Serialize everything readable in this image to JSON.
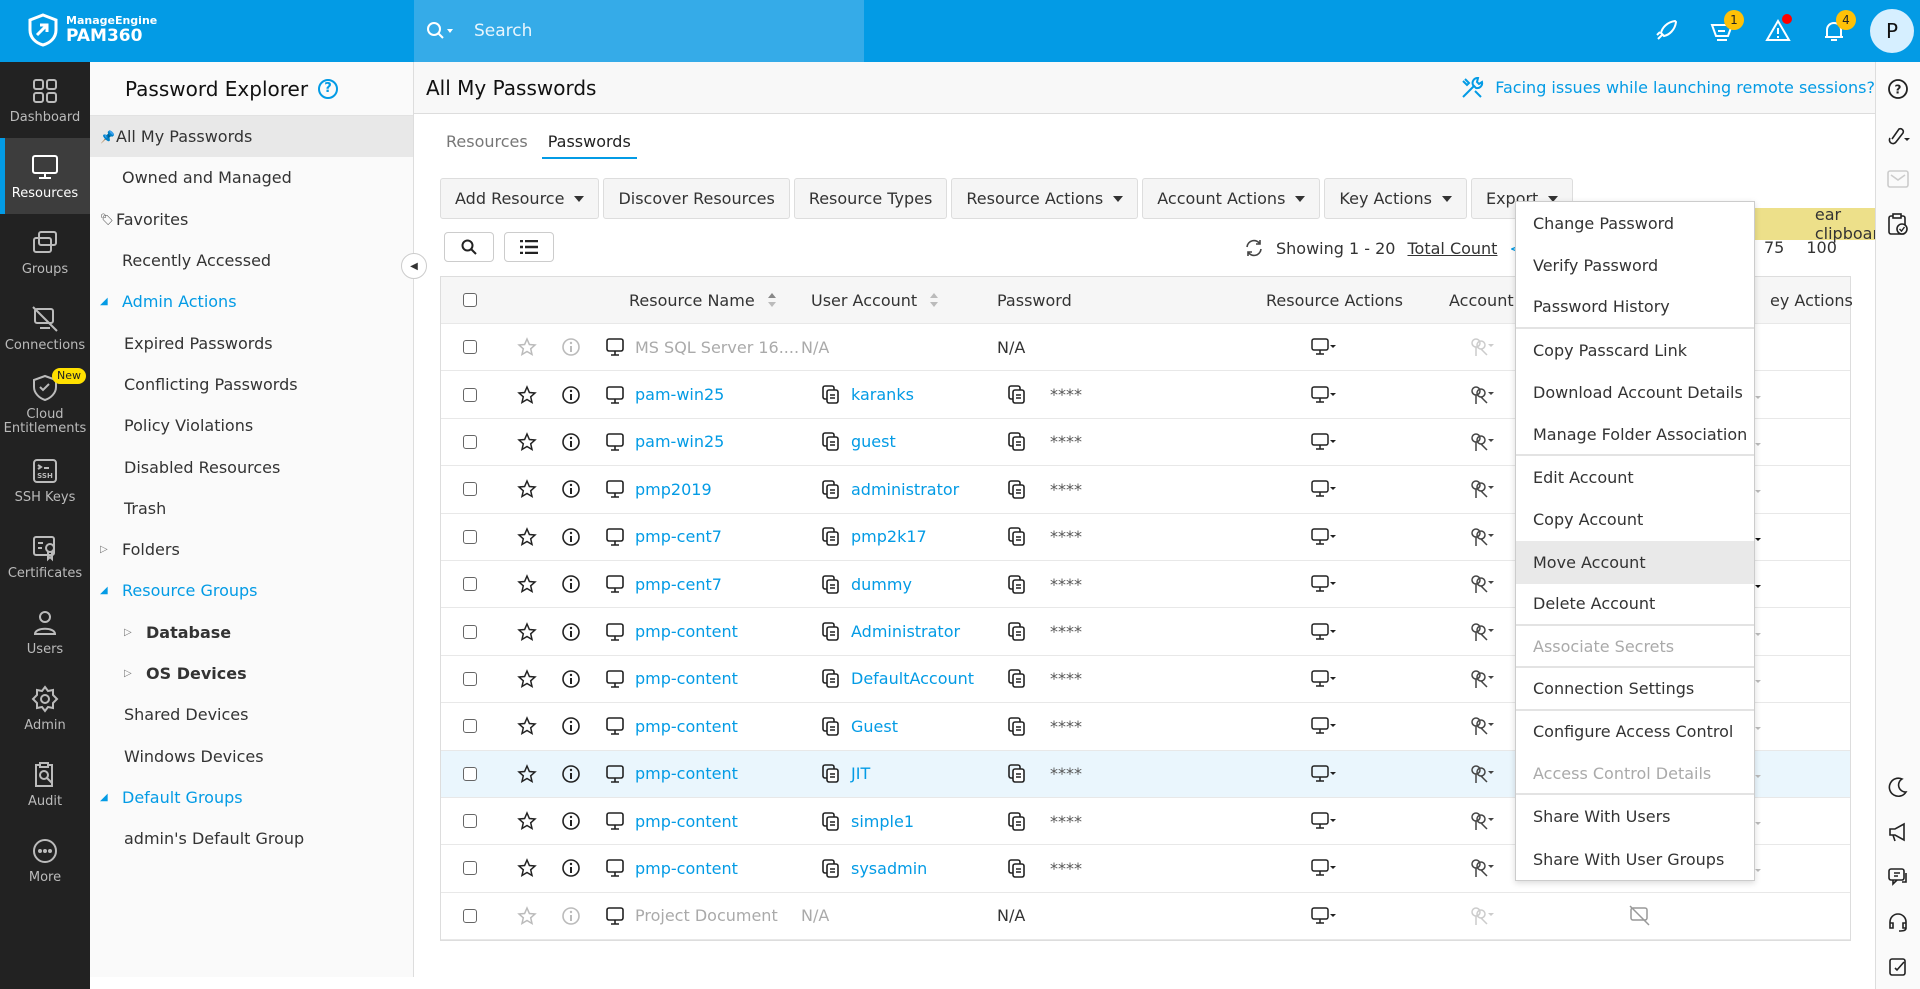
{
  "brand": {
    "company": "ManageEngine",
    "product": "PAM360"
  },
  "search": {
    "placeholder": "Search"
  },
  "topbar": {
    "cart_badge": "1",
    "notif_badge": "4",
    "avatar": "P"
  },
  "nav": [
    {
      "label": "Dashboard",
      "icon": "dashboard-icon"
    },
    {
      "label": "Resources",
      "icon": "monitor-icon",
      "active": true
    },
    {
      "label": "Groups",
      "icon": "groups-icon"
    },
    {
      "label": "Connections",
      "icon": "connections-icon"
    },
    {
      "label": "Cloud Entitlements",
      "icon": "cloud-shield-icon",
      "badge": "New"
    },
    {
      "label": "SSH Keys",
      "icon": "ssh-icon"
    },
    {
      "label": "Certificates",
      "icon": "certificate-icon"
    },
    {
      "label": "Users",
      "icon": "user-icon"
    },
    {
      "label": "Admin",
      "icon": "gear-icon"
    },
    {
      "label": "Audit",
      "icon": "audit-icon"
    },
    {
      "label": "More",
      "icon": "more-icon"
    }
  ],
  "explorer": {
    "title": "Password Explorer",
    "items": [
      {
        "label": "All My Passwords",
        "level": 0,
        "selected": true,
        "icon": "pin"
      },
      {
        "label": "Owned and Managed",
        "level": 0
      },
      {
        "label": "Favorites",
        "level": 0,
        "icon": "tag"
      },
      {
        "label": "Recently Accessed",
        "level": 0
      },
      {
        "label": "Admin Actions",
        "level": 0,
        "header": true,
        "expanded": true
      },
      {
        "label": "Expired Passwords",
        "level": 1
      },
      {
        "label": "Conflicting Passwords",
        "level": 1
      },
      {
        "label": "Policy Violations",
        "level": 1
      },
      {
        "label": "Disabled Resources",
        "level": 1
      },
      {
        "label": "Trash",
        "level": 1
      },
      {
        "label": "Folders",
        "level": 0,
        "collapsed": true
      },
      {
        "label": "Resource Groups",
        "level": 0,
        "header": true,
        "expanded": true
      },
      {
        "label": "Database",
        "level": 1,
        "collapsed": true,
        "bold": true
      },
      {
        "label": "OS Devices",
        "level": 1,
        "collapsed": true,
        "bold": true
      },
      {
        "label": "Shared Devices",
        "level": 1
      },
      {
        "label": "Windows Devices",
        "level": 1
      },
      {
        "label": "Default Groups",
        "level": 0,
        "header": true,
        "expanded": true
      },
      {
        "label": "admin's Default Group",
        "level": 1
      }
    ]
  },
  "main": {
    "title": "All My Passwords",
    "issue_link": "Facing issues while launching remote sessions?",
    "tabs": [
      {
        "label": "Resources"
      },
      {
        "label": "Passwords",
        "active": true
      }
    ],
    "toolbar": [
      {
        "label": "Add Resource",
        "caret": true
      },
      {
        "label": "Discover Resources"
      },
      {
        "label": "Resource Types"
      },
      {
        "label": "Resource Actions",
        "caret": true
      },
      {
        "label": "Account Actions",
        "caret": true
      },
      {
        "label": "Key Actions",
        "caret": true
      },
      {
        "label": "Export",
        "caret": true
      }
    ],
    "pager": {
      "showing": "Showing 1 - 20",
      "total": "Total Count",
      "prev": "p",
      "sizes": [
        "75",
        "100"
      ]
    },
    "tooltip": "ear clipboard.",
    "columns": {
      "resource": "Resource Name",
      "account": "User Account",
      "password": "Password",
      "resource_actions": "Resource Actions",
      "account_actions": "Account Act",
      "key_actions": "ey Actions"
    },
    "rows": [
      {
        "resource": "MS SQL Server 16....",
        "account": "N/A",
        "password": "N/A",
        "disabled": true,
        "key": "none"
      },
      {
        "resource": "pam-win25",
        "account": "karanks",
        "password": "****",
        "key": "light"
      },
      {
        "resource": "pam-win25",
        "account": "guest",
        "password": "****",
        "key": "light"
      },
      {
        "resource": "pmp2019",
        "account": "administrator",
        "password": "****",
        "key": "light"
      },
      {
        "resource": "pmp-cent7",
        "account": "pmp2k17",
        "password": "****",
        "key": "dark"
      },
      {
        "resource": "pmp-cent7",
        "account": "dummy",
        "password": "****",
        "key": "dark"
      },
      {
        "resource": "pmp-content",
        "account": "Administrator",
        "password": "****",
        "key": "light"
      },
      {
        "resource": "pmp-content",
        "account": "DefaultAccount",
        "password": "****",
        "key": "light"
      },
      {
        "resource": "pmp-content",
        "account": "Guest",
        "password": "****",
        "key": "light"
      },
      {
        "resource": "pmp-content",
        "account": "JIT",
        "password": "****",
        "key": "light",
        "highlighted": true
      },
      {
        "resource": "pmp-content",
        "account": "simple1",
        "password": "****",
        "key": "light"
      },
      {
        "resource": "pmp-content",
        "account": "sysadmin",
        "password": "****",
        "key": "light"
      },
      {
        "resource": "Project Document",
        "account": "N/A",
        "password": "N/A",
        "disabled": true,
        "key": "connection-off"
      }
    ]
  },
  "menu": [
    {
      "label": "Change Password"
    },
    {
      "label": "Verify Password"
    },
    {
      "label": "Password History",
      "sep": true
    },
    {
      "label": "Copy Passcard Link"
    },
    {
      "label": "Download Account Details"
    },
    {
      "label": "Manage Folder Association",
      "sep": true
    },
    {
      "label": "Edit Account"
    },
    {
      "label": "Copy Account"
    },
    {
      "label": "Move Account",
      "hover": true
    },
    {
      "label": "Delete Account",
      "sep": true
    },
    {
      "label": "Associate Secrets",
      "disabled": true,
      "sep": true
    },
    {
      "label": "Connection Settings",
      "sep": true
    },
    {
      "label": "Configure Access Control"
    },
    {
      "label": "Access Control Details",
      "disabled": true,
      "sep": true
    },
    {
      "label": "Share With Users"
    },
    {
      "label": "Share With User Groups"
    }
  ],
  "colors": {
    "brand": "#039be5",
    "nav_bg": "#222222",
    "tooltip": "#ede08a",
    "badge": "#ffc107"
  }
}
